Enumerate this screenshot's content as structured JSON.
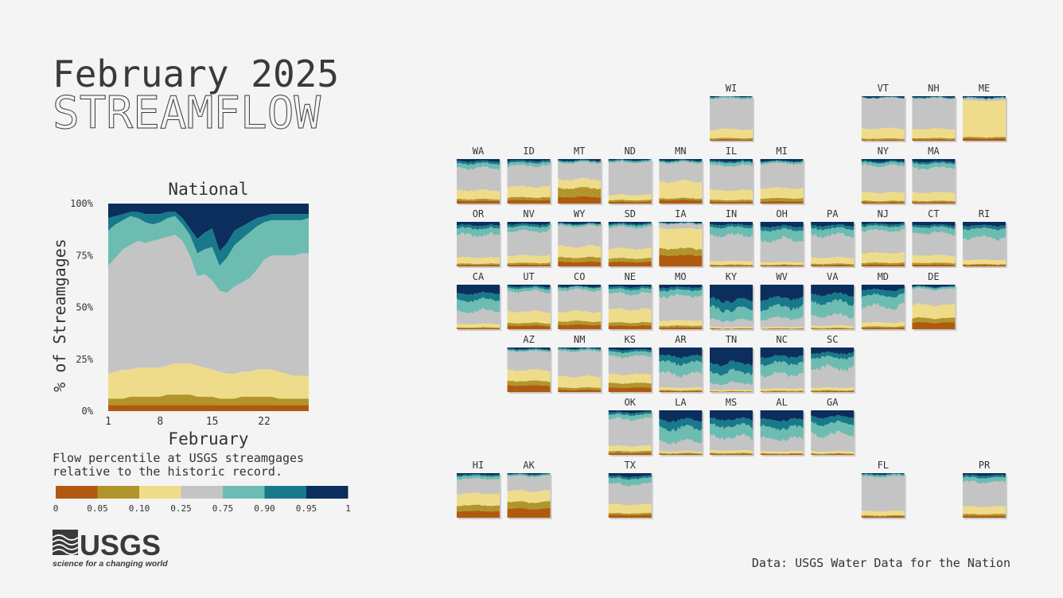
{
  "title": {
    "line1": "February 2025",
    "line2": "STREAMFLOW"
  },
  "colors": {
    "background": "#f4f4f4",
    "bands": [
      "#b05a10",
      "#b1952a",
      "#efdc8a",
      "#c4c4c4",
      "#6dbcb1",
      "#18798a",
      "#0b2e5c"
    ]
  },
  "chart_data": [
    {
      "type": "area",
      "title": "National",
      "xlabel": "February",
      "ylabel": "% of Streamgages",
      "x_ticks": [
        1,
        8,
        15,
        22
      ],
      "y_ticks": [
        "0%",
        "25%",
        "50%",
        "75%",
        "100%"
      ],
      "ylim": [
        0,
        100
      ],
      "xlim": [
        1,
        28
      ],
      "x": [
        1,
        2,
        3,
        4,
        5,
        6,
        7,
        8,
        9,
        10,
        11,
        12,
        13,
        14,
        15,
        16,
        17,
        18,
        19,
        20,
        21,
        22,
        23,
        24,
        25,
        26,
        27,
        28
      ],
      "stack_order": [
        "0-0.05",
        "0.05-0.10",
        "0.10-0.25",
        "0.25-0.75",
        "0.75-0.90",
        "0.90-0.95",
        "0.95-1"
      ],
      "cumulative_upper_bounds": [
        [
          3,
          3,
          3,
          3,
          3,
          3,
          3,
          3,
          3,
          3,
          3,
          3,
          3,
          3,
          3,
          3,
          3,
          3,
          3,
          3,
          3,
          3,
          3,
          3,
          3,
          3,
          3,
          3
        ],
        [
          6,
          6,
          6,
          7,
          7,
          7,
          7,
          7,
          8,
          8,
          8,
          8,
          7,
          7,
          7,
          6,
          6,
          6,
          7,
          7,
          7,
          7,
          7,
          6,
          6,
          6,
          6,
          6
        ],
        [
          18,
          19,
          20,
          20,
          21,
          21,
          21,
          21,
          22,
          23,
          23,
          23,
          22,
          21,
          20,
          19,
          18,
          18,
          19,
          19,
          20,
          20,
          20,
          19,
          18,
          17,
          17,
          17
        ],
        [
          70,
          74,
          78,
          80,
          82,
          81,
          82,
          83,
          84,
          85,
          82,
          75,
          65,
          66,
          63,
          58,
          57,
          60,
          62,
          64,
          68,
          73,
          75,
          75,
          75,
          75,
          76,
          76
        ],
        [
          87,
          90,
          92,
          94,
          93,
          91,
          90,
          91,
          93,
          94,
          90,
          85,
          76,
          78,
          79,
          70,
          74,
          80,
          83,
          86,
          89,
          91,
          92,
          92,
          92,
          92,
          92,
          93
        ],
        [
          93,
          94,
          95,
          96,
          96,
          95,
          95,
          95,
          96,
          96,
          93,
          88,
          83,
          86,
          88,
          77,
          81,
          87,
          89,
          91,
          93,
          94,
          95,
          95,
          95,
          95,
          95,
          95
        ],
        [
          100,
          100,
          100,
          100,
          100,
          100,
          100,
          100,
          100,
          100,
          100,
          100,
          100,
          100,
          100,
          100,
          100,
          100,
          100,
          100,
          100,
          100,
          100,
          100,
          100,
          100,
          100,
          100
        ]
      ]
    },
    {
      "type": "area",
      "series_form": "small multiples by state",
      "states": [
        {
          "id": "WI",
          "b": [
            3,
            6,
            26,
            95,
            98,
            99
          ]
        },
        {
          "id": "VT",
          "b": [
            2,
            5,
            28,
            96,
            97,
            98
          ]
        },
        {
          "id": "NH",
          "b": [
            3,
            6,
            27,
            95,
            97,
            98
          ]
        },
        {
          "id": "ME",
          "b": [
            5,
            8,
            90,
            94,
            96,
            97
          ]
        },
        {
          "id": "WA",
          "b": [
            6,
            10,
            30,
            80,
            90,
            95
          ]
        },
        {
          "id": "ID",
          "b": [
            8,
            14,
            38,
            85,
            92,
            96
          ]
        },
        {
          "id": "MT",
          "b": [
            15,
            35,
            55,
            92,
            95,
            97
          ]
        },
        {
          "id": "ND",
          "b": [
            4,
            8,
            20,
            93,
            96,
            98
          ]
        },
        {
          "id": "MN",
          "b": [
            8,
            12,
            50,
            92,
            95,
            97
          ]
        },
        {
          "id": "IL",
          "b": [
            4,
            8,
            30,
            85,
            92,
            95
          ]
        },
        {
          "id": "MI",
          "b": [
            5,
            12,
            35,
            90,
            94,
            96
          ]
        },
        {
          "id": "NY",
          "b": [
            3,
            6,
            25,
            85,
            92,
            95
          ]
        },
        {
          "id": "MA",
          "b": [
            3,
            6,
            25,
            80,
            90,
            94
          ]
        },
        {
          "id": "OR",
          "b": [
            3,
            6,
            20,
            70,
            85,
            92
          ]
        },
        {
          "id": "NV",
          "b": [
            4,
            8,
            25,
            80,
            90,
            95
          ]
        },
        {
          "id": "WY",
          "b": [
            10,
            20,
            45,
            90,
            94,
            96
          ]
        },
        {
          "id": "SD",
          "b": [
            10,
            18,
            40,
            88,
            93,
            96
          ]
        },
        {
          "id": "IA",
          "b": [
            25,
            40,
            85,
            95,
            97,
            98
          ]
        },
        {
          "id": "IN",
          "b": [
            2,
            4,
            12,
            70,
            88,
            94
          ]
        },
        {
          "id": "OH",
          "b": [
            2,
            4,
            10,
            60,
            82,
            90
          ]
        },
        {
          "id": "PA",
          "b": [
            3,
            6,
            20,
            70,
            85,
            92
          ]
        },
        {
          "id": "NJ",
          "b": [
            4,
            8,
            30,
            80,
            90,
            95
          ]
        },
        {
          "id": "CT",
          "b": [
            4,
            8,
            25,
            75,
            88,
            93
          ]
        },
        {
          "id": "RI",
          "b": [
            3,
            5,
            15,
            65,
            85,
            92
          ]
        },
        {
          "id": "CA",
          "b": [
            2,
            4,
            12,
            40,
            65,
            80
          ]
        },
        {
          "id": "UT",
          "b": [
            8,
            14,
            40,
            85,
            92,
            96
          ]
        },
        {
          "id": "CO",
          "b": [
            10,
            18,
            40,
            88,
            94,
            96
          ]
        },
        {
          "id": "NE",
          "b": [
            8,
            15,
            45,
            80,
            90,
            95
          ]
        },
        {
          "id": "MO",
          "b": [
            4,
            8,
            20,
            75,
            88,
            94
          ]
        },
        {
          "id": "KY",
          "b": [
            1,
            2,
            5,
            20,
            45,
            65
          ]
        },
        {
          "id": "WV",
          "b": [
            1,
            2,
            5,
            25,
            50,
            70
          ]
        },
        {
          "id": "VA",
          "b": [
            1,
            3,
            8,
            30,
            60,
            78
          ]
        },
        {
          "id": "MD",
          "b": [
            3,
            6,
            15,
            50,
            75,
            88
          ]
        },
        {
          "id": "DE",
          "b": [
            15,
            25,
            55,
            90,
            94,
            96
          ]
        },
        {
          "id": "AZ",
          "b": [
            15,
            25,
            50,
            92,
            95,
            97
          ]
        },
        {
          "id": "NM",
          "b": [
            5,
            10,
            35,
            92,
            96,
            98
          ]
        },
        {
          "id": "KS",
          "b": [
            10,
            20,
            40,
            80,
            90,
            95
          ]
        },
        {
          "id": "AR",
          "b": [
            2,
            4,
            10,
            40,
            65,
            80
          ]
        },
        {
          "id": "TN",
          "b": [
            1,
            2,
            5,
            20,
            45,
            65
          ]
        },
        {
          "id": "NC",
          "b": [
            1,
            3,
            8,
            40,
            65,
            80
          ]
        },
        {
          "id": "SC",
          "b": [
            2,
            4,
            10,
            55,
            78,
            88
          ]
        },
        {
          "id": "OK",
          "b": [
            4,
            8,
            20,
            80,
            90,
            95
          ]
        },
        {
          "id": "LA",
          "b": [
            2,
            4,
            8,
            30,
            60,
            78
          ]
        },
        {
          "id": "MS",
          "b": [
            2,
            4,
            10,
            40,
            65,
            80
          ]
        },
        {
          "id": "AL",
          "b": [
            2,
            3,
            8,
            35,
            60,
            78
          ]
        },
        {
          "id": "GA",
          "b": [
            2,
            3,
            8,
            45,
            70,
            85
          ]
        },
        {
          "id": "HI",
          "b": [
            15,
            28,
            55,
            88,
            94,
            97
          ]
        },
        {
          "id": "AK",
          "b": [
            20,
            35,
            60,
            93,
            96,
            98
          ]
        },
        {
          "id": "TX",
          "b": [
            6,
            10,
            30,
            75,
            88,
            93
          ]
        },
        {
          "id": "FL",
          "b": [
            3,
            5,
            15,
            92,
            96,
            98
          ]
        },
        {
          "id": "PR",
          "b": [
            4,
            8,
            25,
            80,
            90,
            95
          ]
        }
      ]
    }
  ],
  "legend": {
    "labels": [
      "0",
      "0.05",
      "0.10",
      "0.25",
      "0.75",
      "0.90",
      "0.95",
      "1"
    ]
  },
  "description": "Flow percentile at USGS streamgages\nrelative to the historic record.",
  "logo": {
    "text": "USGS",
    "tagline": "science for a changing world"
  },
  "source": "Data: USGS Water Data for the Nation"
}
